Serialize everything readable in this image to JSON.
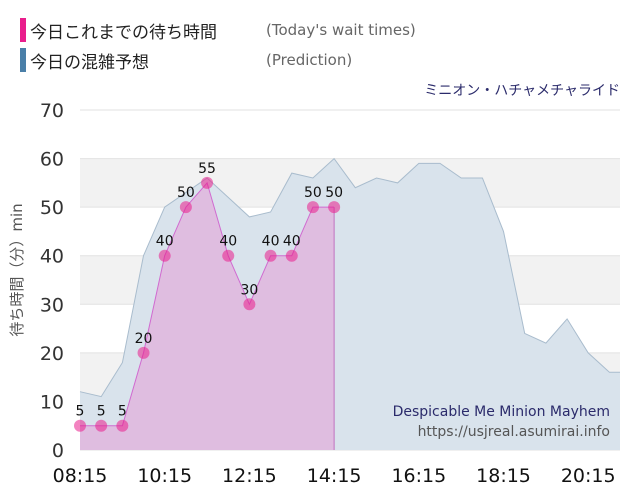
{
  "legend": {
    "today_label": "今日これまでの待ち時間",
    "today_en": "(Today's wait times)",
    "prediction_label": "今日の混雑予想",
    "prediction_en": "(Prediction)"
  },
  "attraction_name": "ミニオン・ハチャメチャライド",
  "watermark": {
    "title": "Despicable Me Minion Mayhem",
    "url": "https://usjreal.asumirai.info"
  },
  "colors": {
    "today": "#e91e8c",
    "prediction": "#4a7fa8",
    "today_fill": "#dfb8df",
    "prediction_fill": "#d9e3ec",
    "prediction_line": "#a9bccd",
    "band": "#f2f2f2"
  },
  "chart_data": {
    "type": "area",
    "ylabel": "待ち時間（分）min",
    "ylim": [
      0,
      70
    ],
    "yticks": [
      0,
      10,
      20,
      30,
      40,
      50,
      60,
      70
    ],
    "xlim": [
      "08:15",
      "21:00"
    ],
    "xticks": [
      "08:15",
      "10:15",
      "12:15",
      "14:15",
      "16:15",
      "18:15",
      "20:15"
    ],
    "series": [
      {
        "key": "today",
        "x": [
          "08:15",
          "08:45",
          "09:15",
          "09:45",
          "10:15",
          "10:45",
          "11:15",
          "11:45",
          "12:15",
          "12:45",
          "13:15",
          "13:45",
          "14:15"
        ],
        "values": [
          5,
          5,
          5,
          20,
          40,
          50,
          55,
          40,
          30,
          40,
          40,
          50,
          50
        ]
      },
      {
        "key": "prediction",
        "x": [
          "08:15",
          "08:45",
          "09:15",
          "09:45",
          "10:15",
          "10:45",
          "11:15",
          "11:45",
          "12:15",
          "12:45",
          "13:15",
          "13:45",
          "14:15",
          "14:45",
          "15:15",
          "15:45",
          "16:15",
          "16:45",
          "17:15",
          "17:45",
          "18:15",
          "18:45",
          "19:15",
          "19:45",
          "20:15",
          "20:45",
          "21:00"
        ],
        "values": [
          12,
          11,
          18,
          40,
          50,
          53,
          56,
          52,
          48,
          49,
          57,
          56,
          60,
          54,
          56,
          55,
          59,
          59,
          56,
          56,
          45,
          24,
          22,
          27,
          20,
          16,
          16
        ]
      }
    ]
  }
}
